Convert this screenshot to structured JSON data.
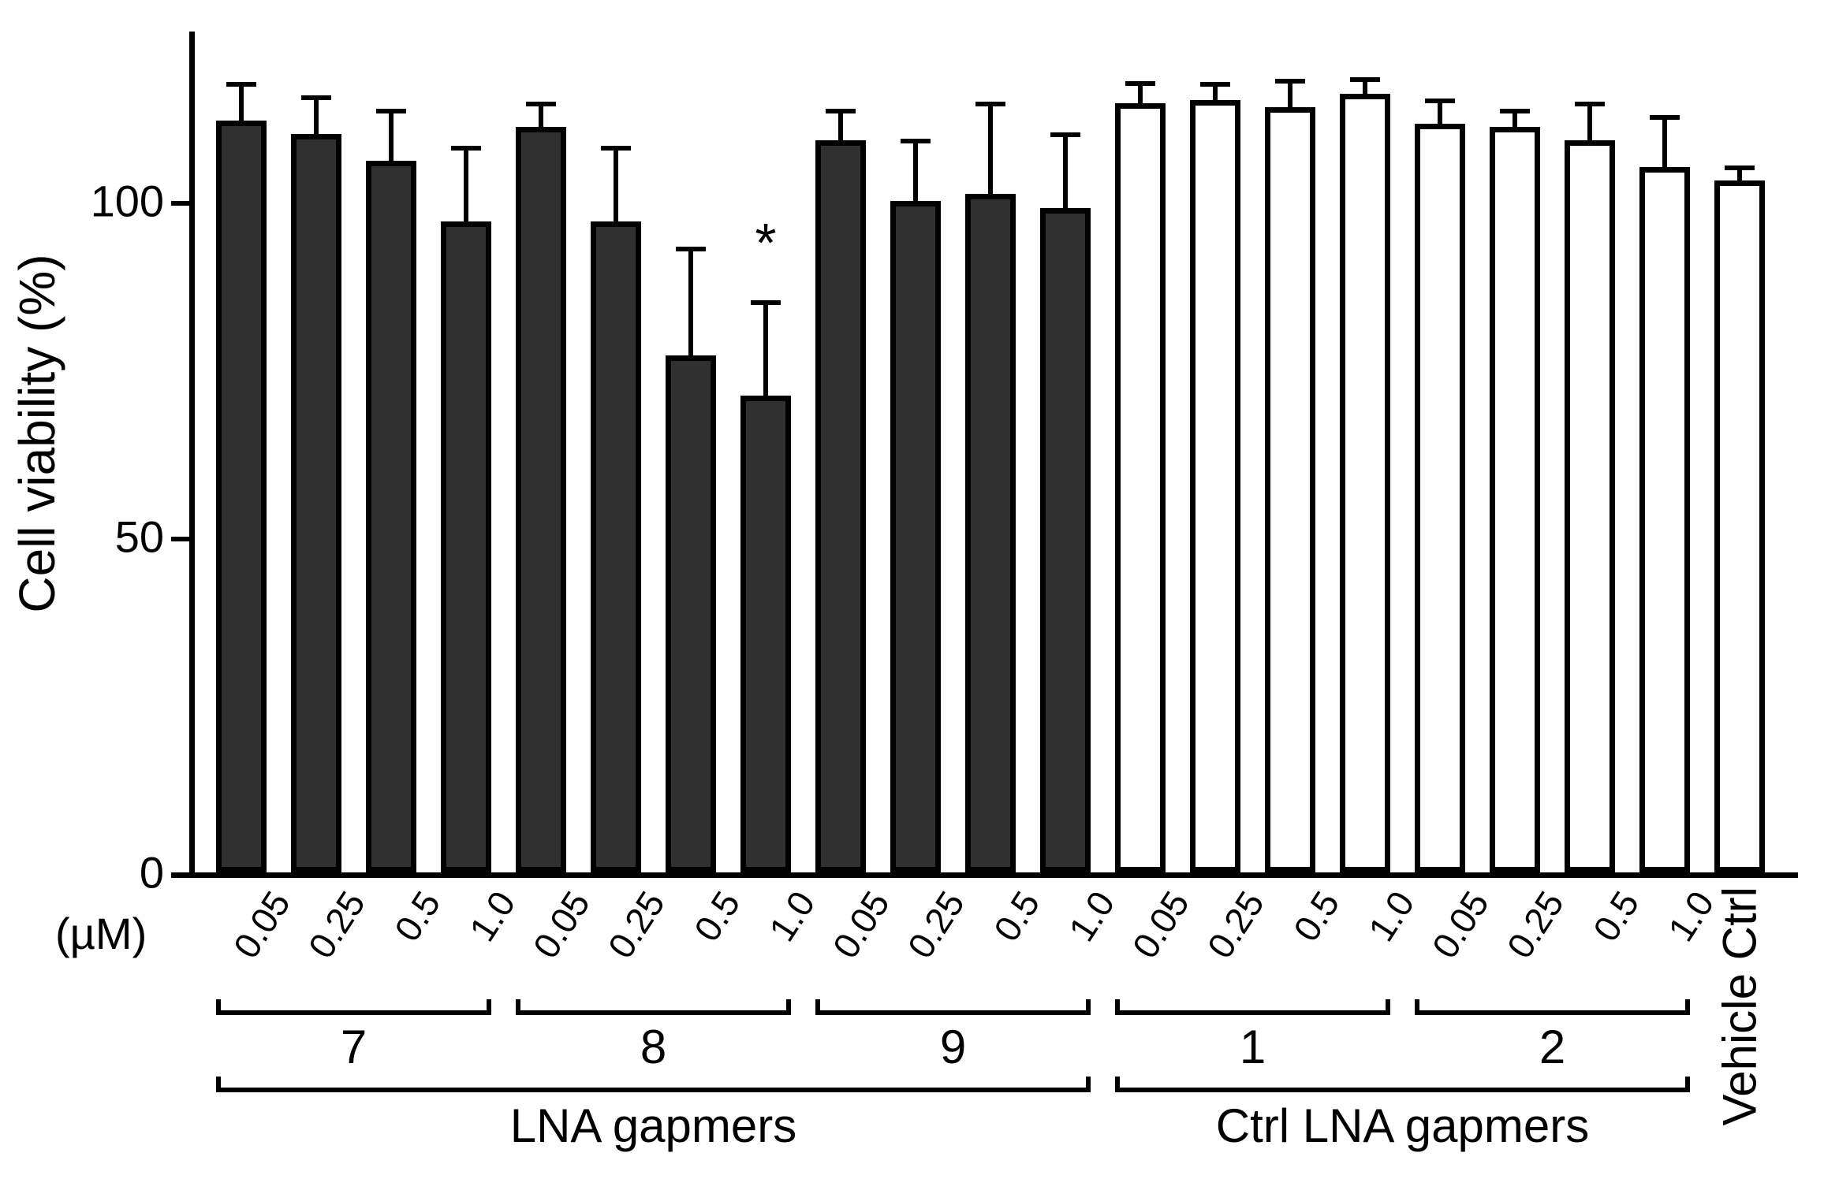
{
  "figure": {
    "background": "#ffffff",
    "outline_color": "#000000",
    "treated_fill": "#303030",
    "control_fill": "#ffffff",
    "significance_marker": "*"
  },
  "chart_data": {
    "type": "bar",
    "title": "",
    "ylabel": "Cell viability (%)",
    "x_unit": "(µM)",
    "ylim": [
      0,
      125
    ],
    "yticks": [
      0,
      50,
      100
    ],
    "grid": false,
    "legend": "none",
    "concentrations": [
      "0.05",
      "0.25",
      "0.5",
      "1.0"
    ],
    "groups": [
      {
        "name": "7",
        "category": "LNA gapmers",
        "fill": "dark",
        "values": [
          112,
          110,
          106,
          97
        ],
        "errors": [
          5.5,
          5.5,
          7.5,
          11
        ],
        "significant": [
          false,
          false,
          false,
          false
        ]
      },
      {
        "name": "8",
        "category": "LNA gapmers",
        "fill": "dark",
        "values": [
          111,
          97,
          77,
          71
        ],
        "errors": [
          3.5,
          11,
          16,
          14
        ],
        "significant": [
          false,
          false,
          false,
          true
        ]
      },
      {
        "name": "9",
        "category": "LNA gapmers",
        "fill": "dark",
        "values": [
          109,
          100,
          101,
          99
        ],
        "errors": [
          4.5,
          9,
          13.5,
          11
        ],
        "significant": [
          false,
          false,
          false,
          false
        ]
      },
      {
        "name": "1",
        "category": "Ctrl LNA gapmers",
        "fill": "white",
        "values": [
          114.5,
          115,
          114,
          116
        ],
        "errors": [
          3,
          2.5,
          4,
          2.2
        ],
        "significant": [
          false,
          false,
          false,
          false
        ]
      },
      {
        "name": "2",
        "category": "Ctrl LNA gapmers",
        "fill": "white",
        "values": [
          111.5,
          111,
          109,
          105
        ],
        "errors": [
          3.5,
          2.5,
          5.5,
          7.5
        ],
        "significant": [
          false,
          false,
          false,
          false
        ]
      }
    ],
    "single_bars": [
      {
        "name": "Vehicle Ctrl",
        "fill": "white",
        "value": 103,
        "error": 2,
        "significant": false
      }
    ],
    "category_brackets": [
      {
        "label": "LNA gapmers",
        "group_names": [
          "7",
          "8",
          "9"
        ]
      },
      {
        "label": "Ctrl LNA gapmers",
        "group_names": [
          "1",
          "2"
        ]
      }
    ]
  }
}
